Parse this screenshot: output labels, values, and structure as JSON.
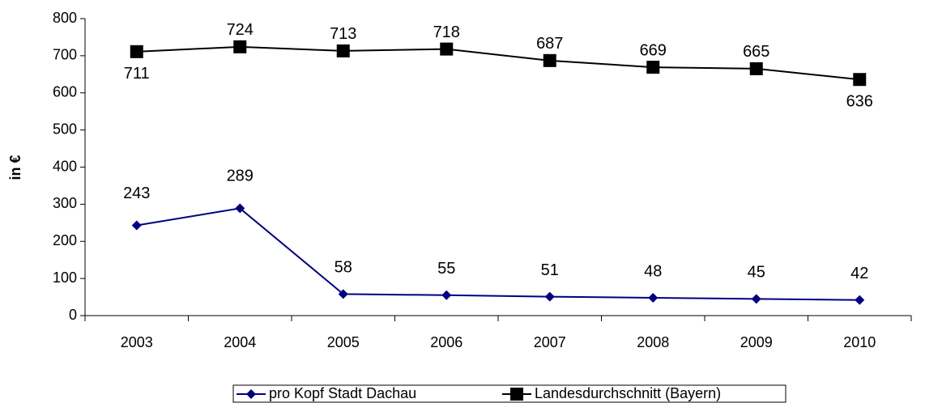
{
  "chart_data": {
    "type": "line",
    "y_label": "in €",
    "categories": [
      "2003",
      "2004",
      "2005",
      "2006",
      "2007",
      "2008",
      "2009",
      "2010"
    ],
    "series": [
      {
        "name": "pro Kopf Stadt Dachau",
        "color": "#000080",
        "marker": "diamond",
        "values": [
          243,
          289,
          58,
          55,
          51,
          48,
          45,
          42
        ]
      },
      {
        "name": "Landesdurchschnitt (Bayern)",
        "color": "#000000",
        "marker": "square",
        "values": [
          711,
          724,
          713,
          718,
          687,
          669,
          665,
          636
        ]
      }
    ],
    "ylim": [
      0,
      800
    ],
    "yticks": [
      0,
      100,
      200,
      300,
      400,
      500,
      600,
      700,
      800
    ],
    "grid": false,
    "legend": "bottom"
  }
}
